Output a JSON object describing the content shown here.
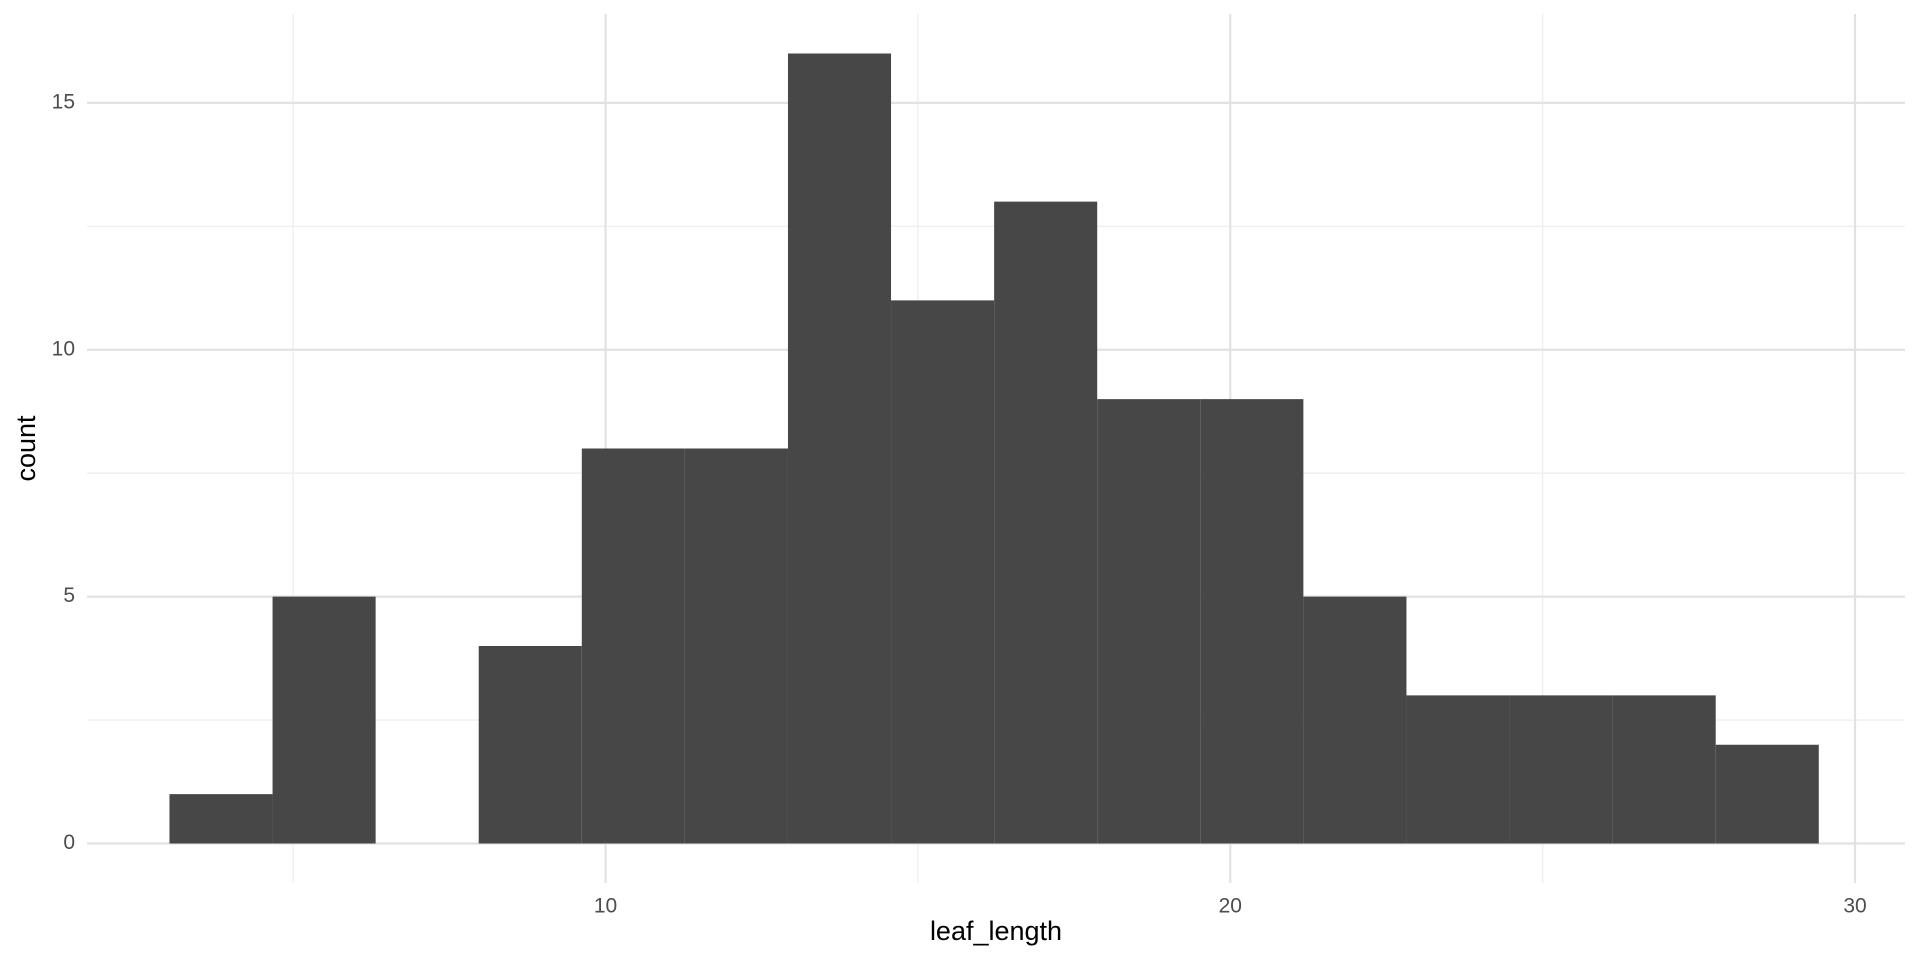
{
  "chart_data": {
    "type": "histogram",
    "title": "",
    "xlabel": "leaf_length",
    "ylabel": "count",
    "bin_width": 1.65,
    "bins": [
      {
        "x0": 3.02,
        "x1": 4.67,
        "count": 1
      },
      {
        "x0": 4.67,
        "x1": 6.32,
        "count": 5
      },
      {
        "x0": 6.32,
        "x1": 7.97,
        "count": 0
      },
      {
        "x0": 7.97,
        "x1": 9.62,
        "count": 4
      },
      {
        "x0": 9.62,
        "x1": 11.27,
        "count": 8
      },
      {
        "x0": 11.27,
        "x1": 12.92,
        "count": 8
      },
      {
        "x0": 12.92,
        "x1": 14.57,
        "count": 16
      },
      {
        "x0": 14.57,
        "x1": 16.22,
        "count": 11
      },
      {
        "x0": 16.22,
        "x1": 17.87,
        "count": 13
      },
      {
        "x0": 17.87,
        "x1": 19.52,
        "count": 9
      },
      {
        "x0": 19.52,
        "x1": 21.17,
        "count": 9
      },
      {
        "x0": 21.17,
        "x1": 22.82,
        "count": 5
      },
      {
        "x0": 22.82,
        "x1": 24.47,
        "count": 3
      },
      {
        "x0": 24.47,
        "x1": 26.12,
        "count": 3
      },
      {
        "x0": 26.12,
        "x1": 27.77,
        "count": 3
      },
      {
        "x0": 27.77,
        "x1": 29.42,
        "count": 2
      }
    ],
    "xlim": [
      1.7,
      30.8
    ],
    "ylim": [
      -0.8,
      16.8
    ],
    "x_ticks": [
      10,
      20,
      30
    ],
    "x_tick_labels": [
      "10",
      "20",
      "30"
    ],
    "x_minor_ticks": [
      5,
      15,
      25
    ],
    "y_ticks": [
      0,
      5,
      10,
      15
    ],
    "y_tick_labels": [
      "0",
      "5",
      "10",
      "15"
    ],
    "y_minor_ticks": [
      2.5,
      7.5,
      12.5
    ],
    "bar_color": "#474747",
    "grid": true,
    "legend": "none"
  }
}
